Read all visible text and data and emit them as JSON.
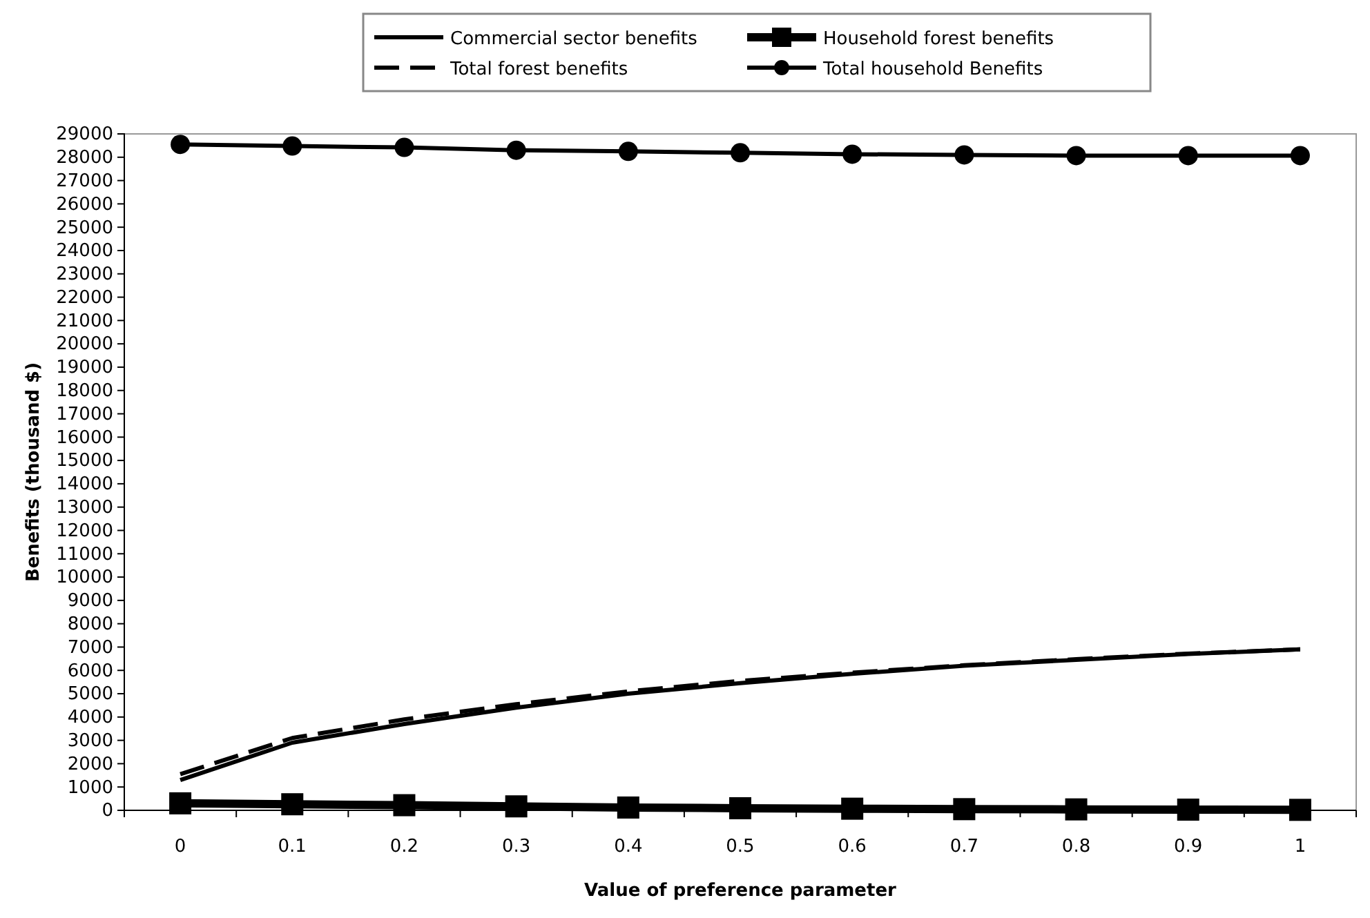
{
  "chart_data": {
    "type": "line",
    "xlabel": "Value of preference parameter",
    "ylabel": "Benefits (thousand $)",
    "categories": [
      "0",
      "0.1",
      "0.2",
      "0.3",
      "0.4",
      "0.5",
      "0.6",
      "0.7",
      "0.8",
      "0.9",
      "1"
    ],
    "ylim": [
      0,
      29000
    ],
    "yticks": [
      0,
      1000,
      2000,
      3000,
      4000,
      5000,
      6000,
      7000,
      8000,
      9000,
      10000,
      11000,
      12000,
      13000,
      14000,
      15000,
      16000,
      17000,
      18000,
      19000,
      20000,
      21000,
      22000,
      23000,
      24000,
      25000,
      26000,
      27000,
      28000,
      29000
    ],
    "legend": "top",
    "grid": false,
    "series": [
      {
        "name": "Commercial sector benefits",
        "color": "#000000",
        "marker": "none",
        "line_style": "solid",
        "values": [
          1300,
          2900,
          3700,
          4400,
          5000,
          5450,
          5850,
          6200,
          6450,
          6700,
          6900
        ]
      },
      {
        "name": "Household forest benefits",
        "color": "#000000",
        "marker": "square",
        "line_style": "solid",
        "values": [
          300,
          260,
          220,
          170,
          120,
          90,
          70,
          50,
          40,
          30,
          20
        ]
      },
      {
        "name": "Total forest benefits",
        "color": "#000000",
        "marker": "none",
        "line_style": "dashed",
        "values": [
          1550,
          3100,
          3900,
          4550,
          5100,
          5550,
          5900,
          6220,
          6480,
          6720,
          6900
        ]
      },
      {
        "name": "Total household Benefits",
        "color": "#000000",
        "marker": "circle",
        "line_style": "solid",
        "values": [
          28550,
          28480,
          28420,
          28300,
          28250,
          28190,
          28130,
          28100,
          28070,
          28070,
          28070
        ]
      }
    ]
  }
}
